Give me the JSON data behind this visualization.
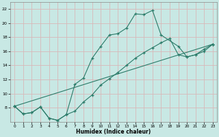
{
  "xlabel": "Humidex (Indice chaleur)",
  "xlim": [
    -0.5,
    23.5
  ],
  "ylim": [
    6,
    23
  ],
  "xticks": [
    0,
    1,
    2,
    3,
    4,
    5,
    6,
    7,
    8,
    9,
    10,
    11,
    12,
    13,
    14,
    15,
    16,
    17,
    18,
    19,
    20,
    21,
    22,
    23
  ],
  "yticks": [
    8,
    10,
    12,
    14,
    16,
    18,
    20,
    22
  ],
  "ytick_labels": [
    "8",
    "10",
    "12",
    "14",
    "16",
    "18",
    "20",
    "22"
  ],
  "bg_color": "#c8e8e4",
  "grid_color": "#d8b8b8",
  "line_color": "#2a7a68",
  "line1_x": [
    0,
    1,
    2,
    3,
    4,
    5,
    6,
    7,
    8,
    9,
    10,
    11,
    12,
    13,
    14,
    15,
    16,
    17,
    19,
    20,
    21,
    22,
    23
  ],
  "line1_y": [
    8.2,
    7.1,
    7.3,
    8.1,
    6.5,
    6.2,
    7.0,
    11.3,
    12.2,
    15.0,
    16.7,
    18.3,
    18.5,
    19.3,
    21.3,
    21.2,
    21.8,
    18.3,
    16.7,
    15.2,
    15.5,
    16.3,
    17.0
  ],
  "line2_x": [
    0,
    1,
    2,
    3,
    4,
    5,
    6,
    7,
    8,
    9,
    10,
    11,
    12,
    13,
    14,
    15,
    16,
    17,
    18,
    19,
    20,
    21,
    22,
    23
  ],
  "line2_y": [
    8.2,
    7.1,
    7.3,
    8.1,
    6.5,
    6.2,
    7.0,
    7.5,
    8.8,
    9.8,
    11.2,
    12.1,
    13.0,
    14.0,
    15.0,
    15.8,
    16.5,
    17.2,
    17.8,
    15.5,
    15.2,
    15.5,
    16.0,
    17.0
  ],
  "line3_x": [
    0,
    23
  ],
  "line3_y": [
    8.2,
    17.0
  ]
}
